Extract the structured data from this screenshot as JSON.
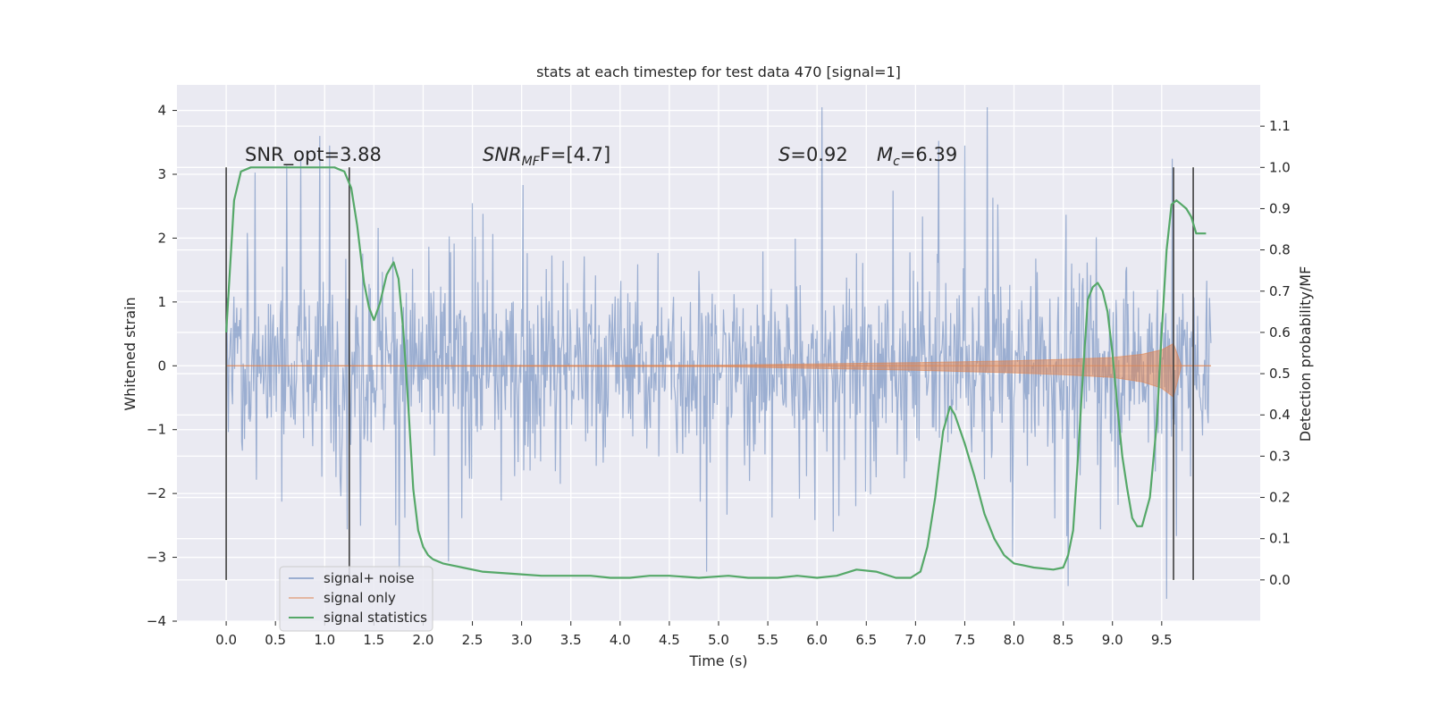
{
  "chart_data": {
    "type": "line",
    "title": "stats at each timestep for test data 470 [signal=1]",
    "xlabel": "Time (s)",
    "ylabel": "Whitened strain",
    "y2label": "Detection probability/MF",
    "xlim": [
      -0.5,
      10.5
    ],
    "ylim": [
      -4.0,
      4.4
    ],
    "y2lim": [
      -0.1,
      1.2
    ],
    "xticks": [
      "0.0",
      "0.5",
      "1.0",
      "1.5",
      "2.0",
      "2.5",
      "3.0",
      "3.5",
      "4.0",
      "4.5",
      "5.0",
      "5.5",
      "6.0",
      "6.5",
      "7.0",
      "7.5",
      "8.0",
      "8.5",
      "9.0",
      "9.5"
    ],
    "yticks": [
      "4",
      "3",
      "2",
      "1",
      "0",
      "−1",
      "−2",
      "−3",
      "−4"
    ],
    "y2ticks": [
      "1.1",
      "1.0",
      "0.9",
      "0.8",
      "0.7",
      "0.6",
      "0.5",
      "0.4",
      "0.3",
      "0.2",
      "0.1",
      "0.0"
    ],
    "grid": true,
    "legend_position": "lower-left",
    "annotations": {
      "snr_opt": "SNR_opt=3.88",
      "snr_mf_pre": "SNR",
      "snr_mf_sub": "MF",
      "snr_mf_post": "F=[4.7]",
      "s_var": "S",
      "s_val": "=0.92",
      "mc_var": "M",
      "mc_sub": "c",
      "mc_val": "=6.39"
    },
    "series": [
      {
        "name": "signal+ noise",
        "color": "#4c72b0",
        "x_range": [
          0.0,
          10.0
        ],
        "value_range": [
          -3.65,
          4.05
        ],
        "notable_peaks": [
          [
            0.95,
            3.6
          ],
          [
            1.05,
            3.45
          ],
          [
            6.05,
            4.05
          ],
          [
            7.5,
            3.45
          ],
          [
            8.55,
            -3.45
          ],
          [
            9.55,
            -3.65
          ]
        ]
      },
      {
        "name": "signal only",
        "color": "#dd8452",
        "description_values": {
          "x": [
            0.0,
            5.0,
            6.0,
            7.0,
            8.0,
            8.5,
            9.0,
            9.3,
            9.5,
            9.62,
            9.7,
            10.0
          ],
          "amplitude": [
            0.0,
            0.01,
            0.03,
            0.05,
            0.08,
            0.1,
            0.13,
            0.18,
            0.25,
            0.35,
            0.0,
            0.0
          ]
        }
      },
      {
        "name": "signal statistics",
        "color": "#55a868",
        "axis": "right",
        "x": [
          0.0,
          0.08,
          0.15,
          0.25,
          0.4,
          0.6,
          0.8,
          1.0,
          1.1,
          1.2,
          1.27,
          1.33,
          1.4,
          1.45,
          1.5,
          1.56,
          1.63,
          1.7,
          1.75,
          1.8,
          1.85,
          1.9,
          1.95,
          2.0,
          2.05,
          2.1,
          2.2,
          2.4,
          2.6,
          2.9,
          3.2,
          3.5,
          3.7,
          3.9,
          4.1,
          4.3,
          4.5,
          4.8,
          5.1,
          5.3,
          5.6,
          5.8,
          6.0,
          6.2,
          6.4,
          6.6,
          6.8,
          6.95,
          7.05,
          7.12,
          7.2,
          7.28,
          7.35,
          7.4,
          7.5,
          7.6,
          7.7,
          7.8,
          7.9,
          8.0,
          8.2,
          8.4,
          8.5,
          8.55,
          8.6,
          8.65,
          8.7,
          8.75,
          8.8,
          8.85,
          8.9,
          8.95,
          9.0,
          9.05,
          9.1,
          9.15,
          9.2,
          9.25,
          9.3,
          9.38,
          9.45,
          9.5,
          9.55,
          9.6,
          9.65,
          9.7,
          9.75,
          9.8,
          9.85,
          9.95
        ],
        "y": [
          0.6,
          0.92,
          0.99,
          1.0,
          1.0,
          1.0,
          1.0,
          1.0,
          1.0,
          0.99,
          0.95,
          0.86,
          0.72,
          0.66,
          0.63,
          0.67,
          0.74,
          0.77,
          0.73,
          0.6,
          0.42,
          0.22,
          0.12,
          0.08,
          0.06,
          0.05,
          0.04,
          0.03,
          0.02,
          0.015,
          0.01,
          0.01,
          0.01,
          0.005,
          0.005,
          0.01,
          0.01,
          0.005,
          0.01,
          0.005,
          0.005,
          0.01,
          0.005,
          0.01,
          0.025,
          0.02,
          0.005,
          0.005,
          0.02,
          0.08,
          0.2,
          0.36,
          0.42,
          0.4,
          0.33,
          0.25,
          0.16,
          0.1,
          0.06,
          0.04,
          0.03,
          0.025,
          0.03,
          0.06,
          0.12,
          0.3,
          0.5,
          0.68,
          0.71,
          0.72,
          0.7,
          0.65,
          0.55,
          0.42,
          0.3,
          0.22,
          0.15,
          0.13,
          0.13,
          0.2,
          0.38,
          0.6,
          0.8,
          0.91,
          0.92,
          0.91,
          0.9,
          0.88,
          0.84,
          0.84
        ]
      }
    ],
    "vertical_markers_x": [
      0.0,
      1.25,
      9.62,
      9.82
    ]
  },
  "colors": {
    "axes_bg": "#eaeaf2",
    "grid": "#ffffff",
    "noise": "#4c72b0",
    "signal": "#dd8452",
    "stats": "#55a868",
    "marker": "#404040"
  }
}
